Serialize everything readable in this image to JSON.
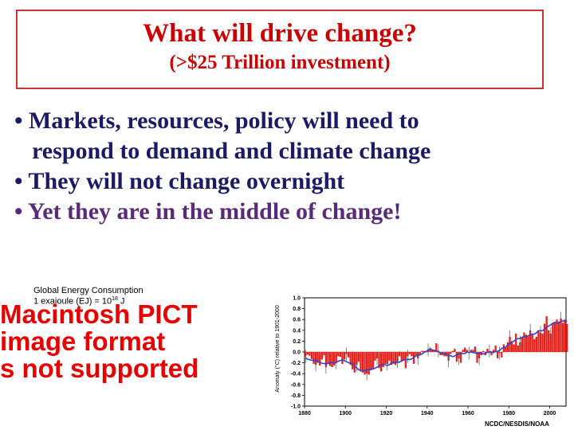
{
  "slide": {
    "title": "What will drive change?",
    "subtitle": "(>$25 Trillion investment)",
    "bullets": [
      {
        "bullet": "•",
        "lines": [
          "Markets, resources, policy will need to",
          "respond to demand and climate change"
        ]
      },
      {
        "bullet": "•",
        "lines": [
          "They will not change overnight"
        ]
      },
      {
        "bullet": "•",
        "lines": [
          "Yet they are in the middle of change!"
        ]
      }
    ]
  },
  "pict": {
    "caption_line1": "Global Energy Consumption",
    "caption_line2_prefix": "1 exajoule (EJ) = 10",
    "caption_line2_exp": "18",
    "caption_line2_suffix": " J",
    "message_lines": [
      "Macintosh PICT",
      "image format",
      "s not supported"
    ]
  },
  "colors": {
    "title": "#cc0000",
    "border": "#cc3333",
    "bullet_text": "#1a1a66",
    "bullet_text_last": "#5a2a7a",
    "pict_message": "#e80000",
    "bar": "#e8201a",
    "line": "#3344cc"
  },
  "chart_data": {
    "type": "bar",
    "ylabel": "Anomaly (°C) relative to 1901-2000",
    "ylim": [
      -1.0,
      1.0
    ],
    "yticks": [
      "1.0",
      "0.8",
      "0.6",
      "0.4",
      "0.2",
      "0.0",
      "-0.2",
      "-0.4",
      "-0.6",
      "-0.8",
      "-1.0"
    ],
    "xlim": [
      1880,
      2008
    ],
    "xticks": [
      "1880",
      "1900",
      "1920",
      "1940",
      "1960",
      "1980",
      "2000"
    ],
    "credit": "NCDC/NESDIS/NOAA",
    "start_year": 1880,
    "values": [
      -0.08,
      -0.05,
      -0.07,
      -0.13,
      -0.22,
      -0.24,
      -0.2,
      -0.25,
      -0.14,
      -0.06,
      -0.28,
      -0.22,
      -0.26,
      -0.28,
      -0.25,
      -0.2,
      -0.08,
      -0.09,
      -0.22,
      -0.14,
      -0.04,
      -0.1,
      -0.24,
      -0.32,
      -0.38,
      -0.24,
      -0.18,
      -0.36,
      -0.38,
      -0.42,
      -0.4,
      -0.42,
      -0.34,
      -0.32,
      -0.16,
      -0.12,
      -0.3,
      -0.36,
      -0.28,
      -0.22,
      -0.22,
      -0.16,
      -0.24,
      -0.22,
      -0.24,
      -0.18,
      -0.08,
      -0.18,
      -0.16,
      -0.3,
      -0.08,
      -0.04,
      -0.08,
      -0.22,
      -0.08,
      -0.12,
      -0.06,
      0.02,
      0.02,
      0.0,
      0.04,
      0.08,
      0.04,
      0.04,
      0.16,
      0.02,
      -0.06,
      -0.06,
      -0.08,
      -0.08,
      -0.16,
      -0.04,
      0.02,
      0.06,
      -0.18,
      -0.12,
      -0.2,
      0.04,
      0.08,
      0.04,
      -0.02,
      0.04,
      0.04,
      0.1,
      -0.2,
      -0.12,
      -0.06,
      0.02,
      -0.06,
      0.06,
      0.02,
      -0.06,
      0.04,
      0.12,
      -0.12,
      -0.02,
      -0.1,
      0.14,
      0.08,
      0.18,
      0.28,
      0.2,
      0.14,
      0.34,
      0.12,
      0.18,
      0.28,
      0.36,
      0.32,
      0.3,
      0.4,
      0.32,
      0.24,
      0.28,
      0.4,
      0.36,
      0.34,
      0.52,
      0.66,
      0.4,
      0.34,
      0.52,
      0.56,
      0.6,
      0.56,
      0.62,
      0.54,
      0.6,
      0.52
    ]
  }
}
